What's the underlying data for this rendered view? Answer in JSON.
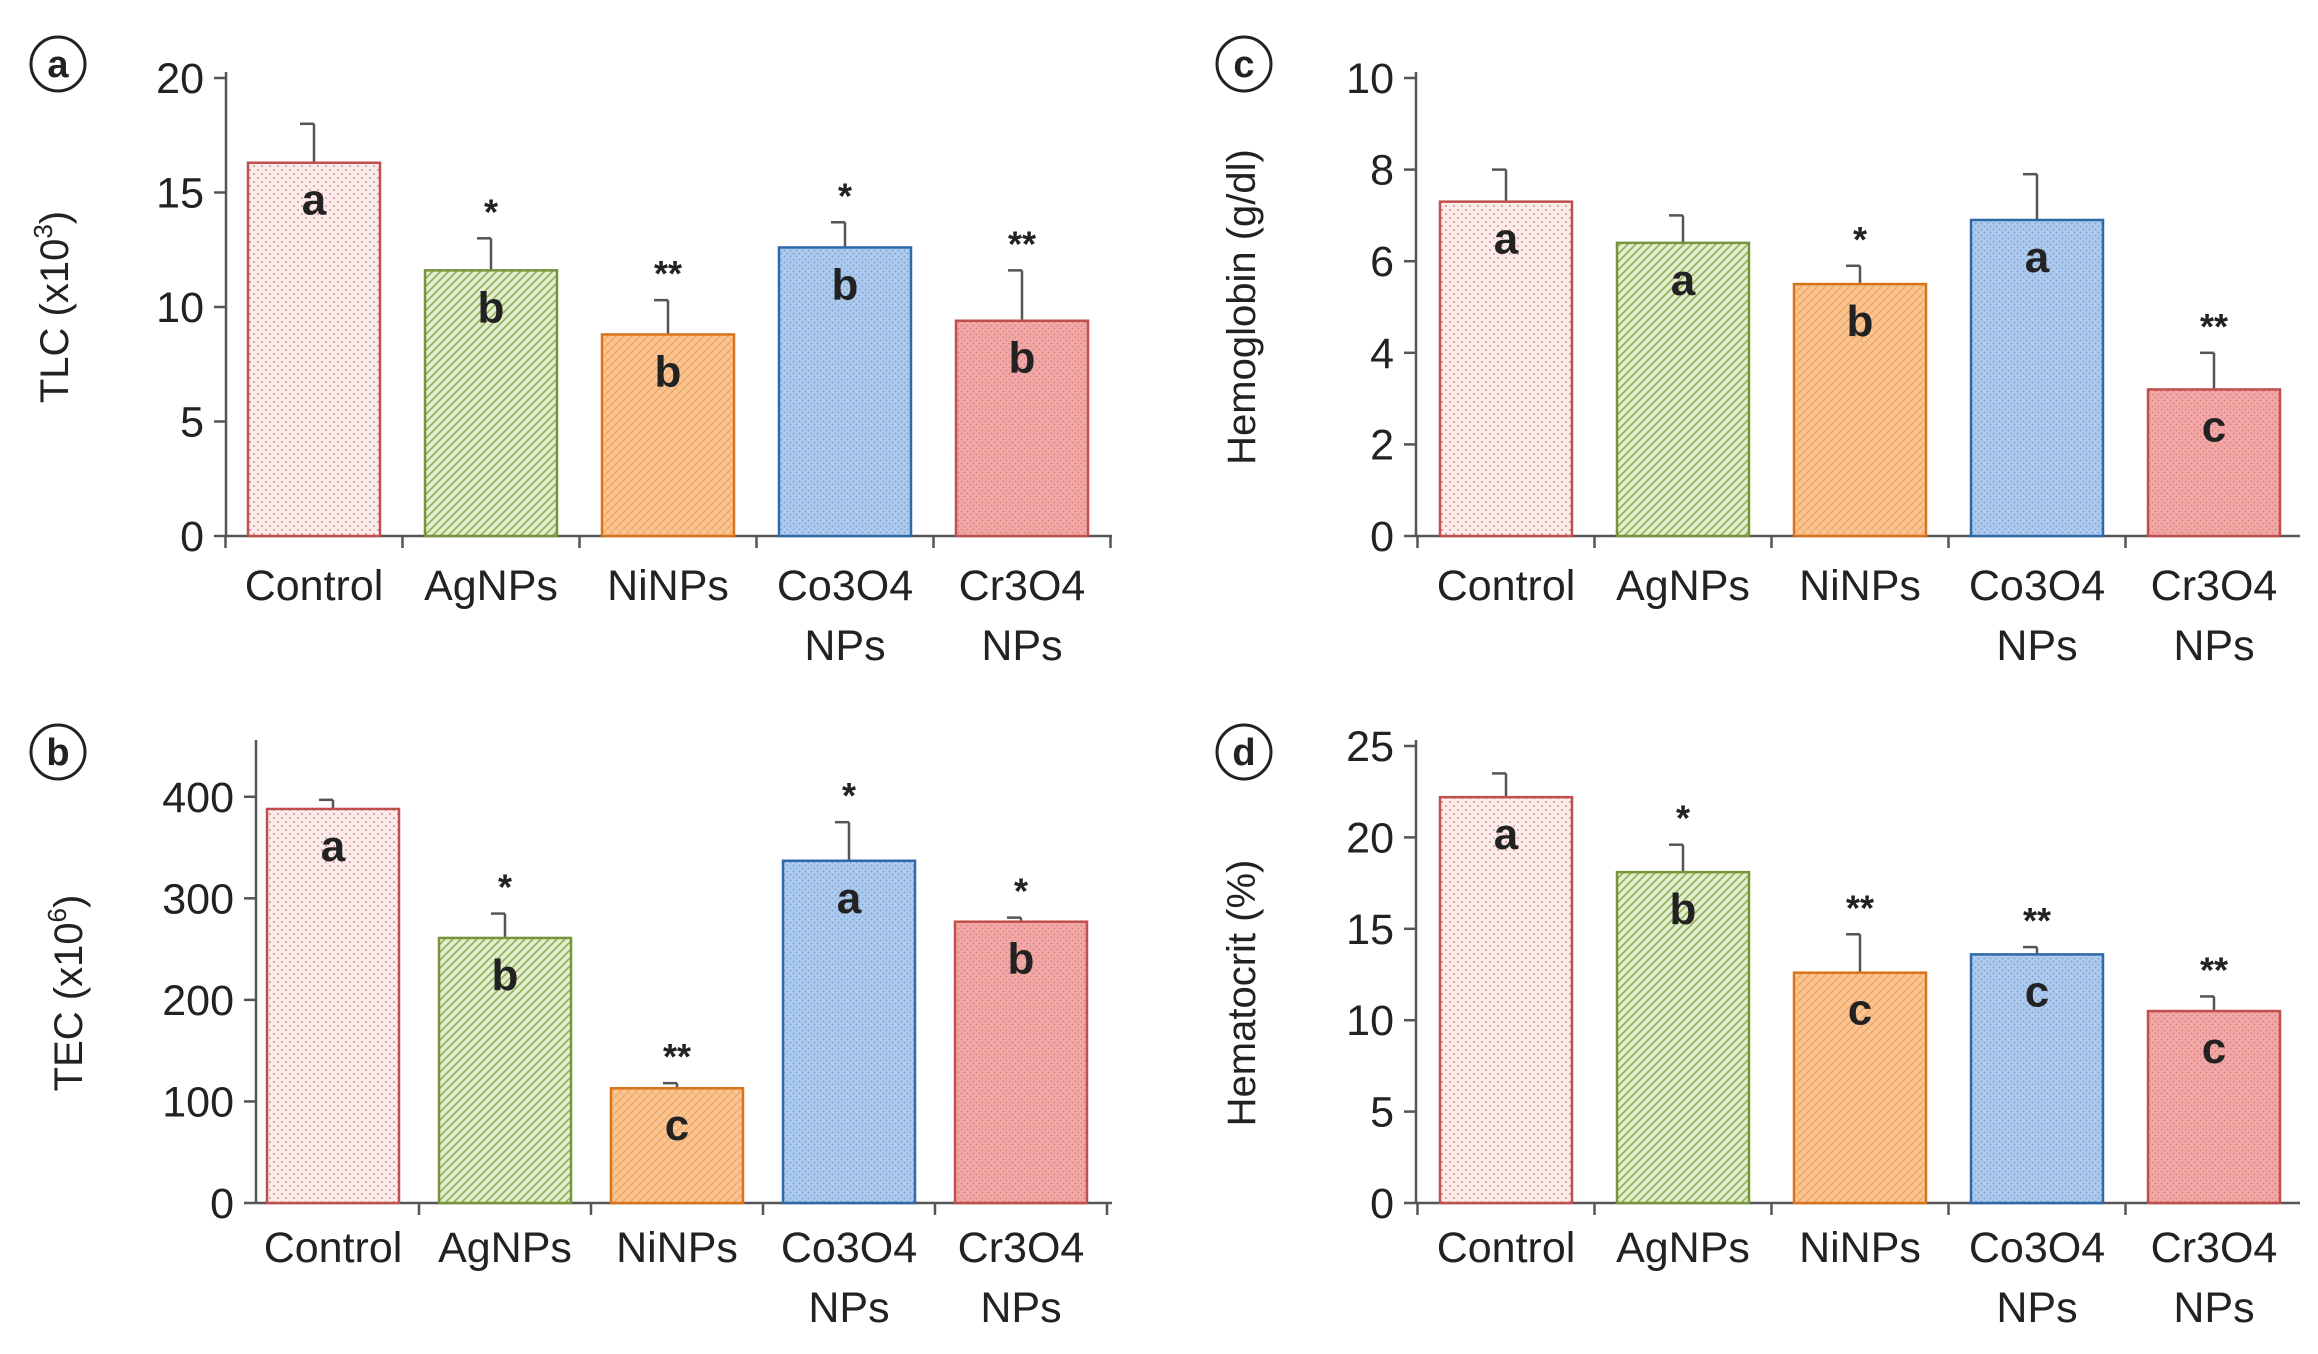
{
  "figure": {
    "colors": {
      "Control": {
        "stroke": "#c0504d",
        "fill": "#fbecec"
      },
      "AgNPs": {
        "stroke": "#77933c",
        "fill": "#dbe9c2"
      },
      "NiNPs": {
        "stroke": "#d9731a",
        "fill": "#fac89a"
      },
      "Co3O4 NPs": {
        "stroke": "#2e6aa8",
        "fill": "#a9c8ec"
      },
      "Cr3O4 NPs": {
        "stroke": "#c0504d",
        "fill": "#ee9f9c"
      }
    }
  },
  "chart_data": [
    {
      "type": "bar",
      "panel_label": "a",
      "ylabel_main": "TLC (x10",
      "ylabel_sup": "3",
      "ylabel_end": ")",
      "ylim": [
        0,
        20
      ],
      "yticks": [
        0,
        5,
        10,
        15,
        20
      ],
      "tick_labels": [
        "0",
        "5",
        "10",
        "15",
        "20"
      ],
      "categories": [
        "Control",
        "AgNPs",
        "NiNPs",
        "Co3O4 NPs",
        "Cr3O4 NPs"
      ],
      "category_lines": [
        [
          "Control"
        ],
        [
          "AgNPs"
        ],
        [
          "NiNPs"
        ],
        [
          "Co3O4",
          "NPs"
        ],
        [
          "Cr3O4",
          "NPs"
        ]
      ],
      "values": [
        16.3,
        11.6,
        8.8,
        12.6,
        9.4
      ],
      "errors": [
        1.7,
        1.4,
        1.5,
        1.1,
        2.2
      ],
      "significance": [
        "",
        "*",
        "**",
        "*",
        "**"
      ],
      "group_letters": [
        "a",
        "b",
        "b",
        "b",
        "b"
      ]
    },
    {
      "type": "bar",
      "panel_label": "b",
      "ylabel_main": "TEC (x10",
      "ylabel_sup": "6",
      "ylabel_end": ")",
      "ylim": [
        0,
        450
      ],
      "yticks": [
        0,
        100,
        200,
        300,
        400
      ],
      "tick_labels": [
        "0",
        "100",
        "200",
        "300",
        "400"
      ],
      "categories": [
        "Control",
        "AgNPs",
        "NiNPs",
        "Co3O4 NPs",
        "Cr3O4 NPs"
      ],
      "category_lines": [
        [
          "Control"
        ],
        [
          "AgNPs"
        ],
        [
          "NiNPs"
        ],
        [
          "Co3O4",
          "NPs"
        ],
        [
          "Cr3O4",
          "NPs"
        ]
      ],
      "values": [
        388,
        261,
        113,
        337,
        277
      ],
      "errors": [
        9,
        24,
        5,
        38,
        4
      ],
      "significance": [
        "",
        "*",
        "**",
        "*",
        "*"
      ],
      "group_letters": [
        "a",
        "b",
        "c",
        "a",
        "b"
      ]
    },
    {
      "type": "bar",
      "panel_label": "c",
      "ylabel_main": "Hemoglobin (g/dl)",
      "ylabel_sup": "",
      "ylabel_end": "",
      "ylim": [
        0,
        10
      ],
      "yticks": [
        0,
        2,
        4,
        6,
        8,
        10
      ],
      "tick_labels": [
        "0",
        "2",
        "4",
        "6",
        "8",
        "10"
      ],
      "categories": [
        "Control",
        "AgNPs",
        "NiNPs",
        "Co3O4 NPs",
        "Cr3O4 NPs"
      ],
      "category_lines": [
        [
          "Control"
        ],
        [
          "AgNPs"
        ],
        [
          "NiNPs"
        ],
        [
          "Co3O4",
          "NPs"
        ],
        [
          "Cr3O4",
          "NPs"
        ]
      ],
      "values": [
        7.3,
        6.4,
        5.5,
        6.9,
        3.2
      ],
      "errors": [
        0.7,
        0.6,
        0.4,
        1.0,
        0.8
      ],
      "significance": [
        "",
        "",
        "*",
        "",
        "**"
      ],
      "group_letters": [
        "a",
        "a",
        "b",
        "a",
        "c"
      ]
    },
    {
      "type": "bar",
      "panel_label": "d",
      "ylabel_main": "Hematocrit (%)",
      "ylabel_sup": "",
      "ylabel_end": "",
      "ylim": [
        0,
        25
      ],
      "yticks": [
        0,
        5,
        10,
        15,
        20,
        25
      ],
      "tick_labels": [
        "0",
        "5",
        "10",
        "15",
        "20",
        "25"
      ],
      "categories": [
        "Control",
        "AgNPs",
        "NiNPs",
        "Co3O4 NPs",
        "Cr3O4 NPs"
      ],
      "category_lines": [
        [
          "Control"
        ],
        [
          "AgNPs"
        ],
        [
          "NiNPs"
        ],
        [
          "Co3O4",
          "NPs"
        ],
        [
          "Cr3O4",
          "NPs"
        ]
      ],
      "values": [
        22.2,
        18.1,
        12.6,
        13.6,
        10.5
      ],
      "errors": [
        1.3,
        1.5,
        2.1,
        0.4,
        0.8
      ],
      "significance": [
        "",
        "*",
        "**",
        "**",
        "**"
      ],
      "group_letters": [
        "a",
        "b",
        "c",
        "c",
        "c"
      ]
    }
  ]
}
